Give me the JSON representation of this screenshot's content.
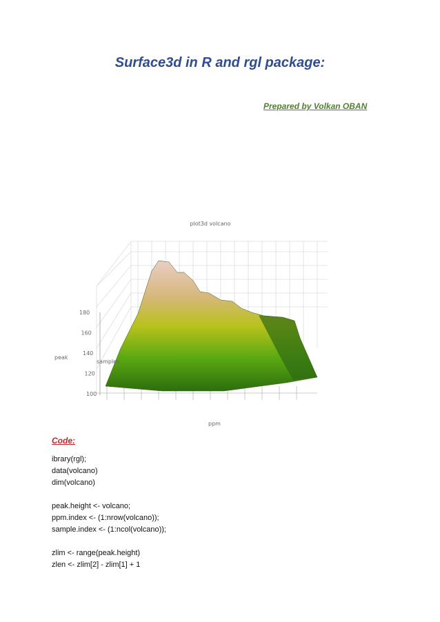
{
  "header": {
    "title": "Surface3d in R and rgl package:",
    "author": "Prepared by Volkan OBAN"
  },
  "figure": {
    "title": "plot3d volcano",
    "z_label": "peak",
    "y_label": "samples",
    "x_label": "ppm",
    "z_ticks": [
      180,
      160,
      140,
      120,
      100
    ]
  },
  "code": {
    "heading": "Code:",
    "blocks": [
      [
        "ibrary(rgl);",
        "data(volcano)",
        "dim(volcano)"
      ],
      [
        "peak.height <- volcano;",
        "ppm.index <- (1:nrow(volcano));",
        "sample.index <- (1:ncol(volcano));"
      ],
      [
        "zlim <- range(peak.height)",
        "zlen <- zlim[2] - zlim[1] + 1"
      ]
    ]
  }
}
